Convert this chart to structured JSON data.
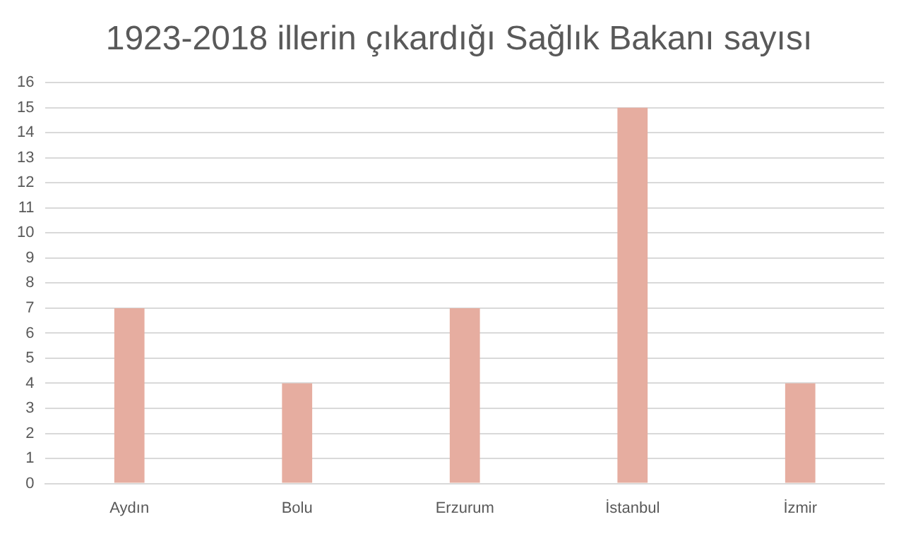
{
  "chart_data": {
    "type": "bar",
    "title": "1923-2018 illerin çıkardığı Sağlık Bakanı sayısı",
    "categories": [
      "Aydın",
      "Bolu",
      "Erzurum",
      "İstanbul",
      "İzmir"
    ],
    "values": [
      7,
      4,
      7,
      15,
      4
    ],
    "color": "#e6ada0",
    "ylim": [
      0,
      16
    ],
    "yticks": [
      0,
      1,
      2,
      3,
      4,
      5,
      6,
      7,
      8,
      9,
      10,
      11,
      12,
      13,
      14,
      15,
      16
    ],
    "grid": "y"
  }
}
